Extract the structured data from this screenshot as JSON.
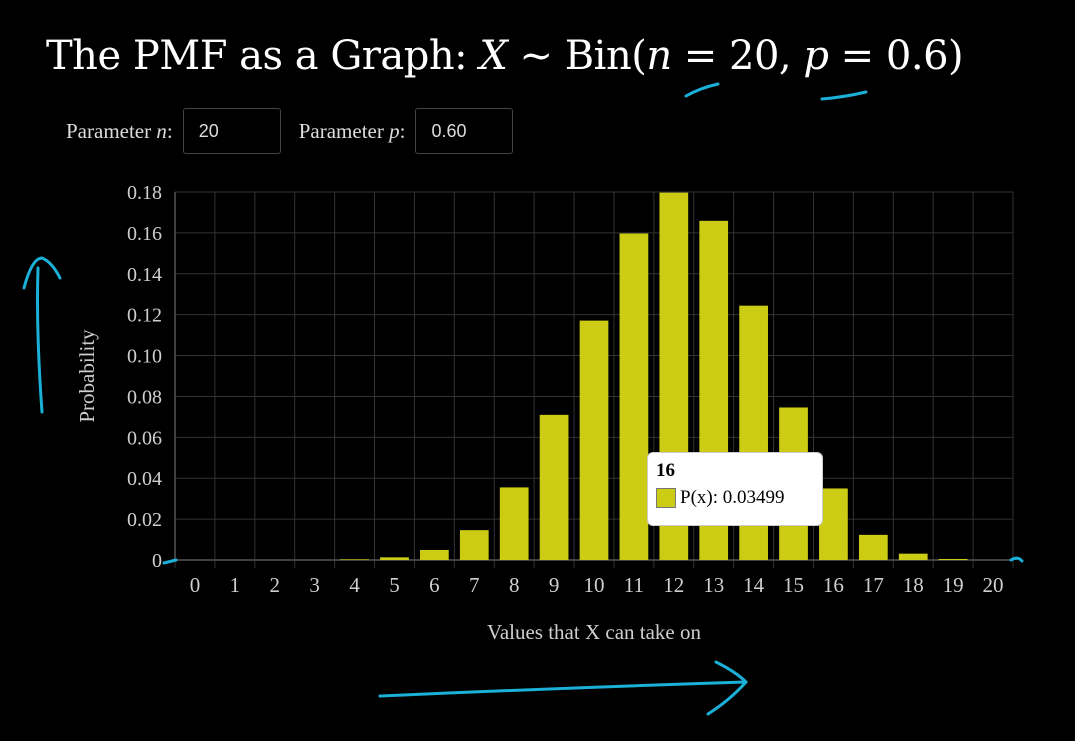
{
  "title": {
    "prefix": "The PMF as a Graph: ",
    "var": "X",
    "tilde": " ~ ",
    "dist": "Bin(",
    "n_sym": "n",
    "eq1": " = 20, ",
    "p_sym": "p",
    "eq2": " = 0.6)"
  },
  "params": {
    "n_label_pre": "Parameter ",
    "n_sym": "n",
    "n_label_post": ":",
    "n_value": "20",
    "p_label_pre": "Parameter ",
    "p_sym": "p",
    "p_label_post": ":",
    "p_value": "0.60"
  },
  "colors": {
    "bar": "#cccc14",
    "grid": "#333333",
    "axis_text": "#cfcfcf",
    "annotation": "#1bb0d8"
  },
  "tooltip": {
    "title": "16",
    "label": "P(x): 0.03499"
  },
  "chart_data": {
    "type": "bar",
    "categories": [
      "0",
      "1",
      "2",
      "3",
      "4",
      "5",
      "6",
      "7",
      "8",
      "9",
      "10",
      "11",
      "12",
      "13",
      "14",
      "15",
      "16",
      "17",
      "18",
      "19",
      "20"
    ],
    "series": [
      {
        "values": [
          0.0,
          0.0,
          0.0,
          0.0,
          0.0003,
          0.0013,
          0.0049,
          0.0146,
          0.0355,
          0.071,
          0.1171,
          0.1597,
          0.1797,
          0.1659,
          0.1244,
          0.0746,
          0.03499,
          0.0123,
          0.0031,
          0.0005,
          0.0
        ]
      }
    ],
    "xlabel": "Values that X can take on",
    "ylabel": "Probability",
    "ylim": [
      0,
      0.18
    ],
    "yticks": [
      "0",
      "0.02",
      "0.04",
      "0.06",
      "0.08",
      "0.10",
      "0.12",
      "0.14",
      "0.16",
      "0.18"
    ],
    "grid": true,
    "highlighted_category": "16"
  }
}
